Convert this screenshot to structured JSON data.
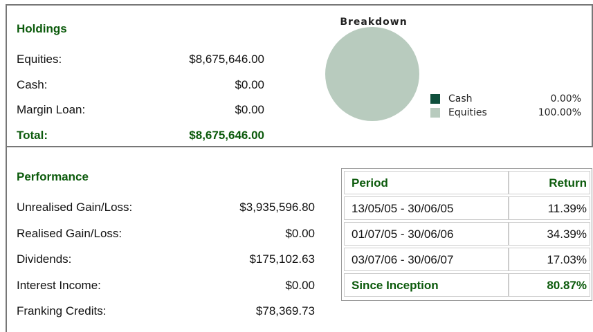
{
  "holdings": {
    "title": "Holdings",
    "rows": [
      {
        "label": "Equities:",
        "value": "$8,675,646.00"
      },
      {
        "label": "Cash:",
        "value": "$0.00"
      },
      {
        "label": "Margin Loan:",
        "value": "$0.00"
      }
    ],
    "total": {
      "label": "Total:",
      "value": "$8,675,646.00"
    }
  },
  "chart_data": {
    "type": "pie",
    "title": "Breakdown",
    "categories": [
      "Cash",
      "Equities"
    ],
    "values": [
      0,
      100
    ],
    "value_labels": [
      "0.00%",
      "100.00%"
    ],
    "colors": [
      "#0f4f3c",
      "#b8cbbe"
    ]
  },
  "performance": {
    "title": "Performance",
    "rows": [
      {
        "label": "Unrealised Gain/Loss:",
        "value": "$3,935,596.80"
      },
      {
        "label": "Realised Gain/Loss:",
        "value": "$0.00"
      },
      {
        "label": "Dividends:",
        "value": "$175,102.63"
      },
      {
        "label": "Interest Income:",
        "value": "$0.00"
      },
      {
        "label": "Franking Credits:",
        "value": "$78,369.73"
      }
    ]
  },
  "returns": {
    "columns": [
      "Period",
      "Return"
    ],
    "rows": [
      [
        "13/05/05 - 30/06/05",
        "11.39%"
      ],
      [
        "01/07/05 - 30/06/06",
        "34.39%"
      ],
      [
        "03/07/06 - 30/06/07",
        "17.03%"
      ],
      [
        "Since Inception",
        "80.87%"
      ]
    ]
  }
}
